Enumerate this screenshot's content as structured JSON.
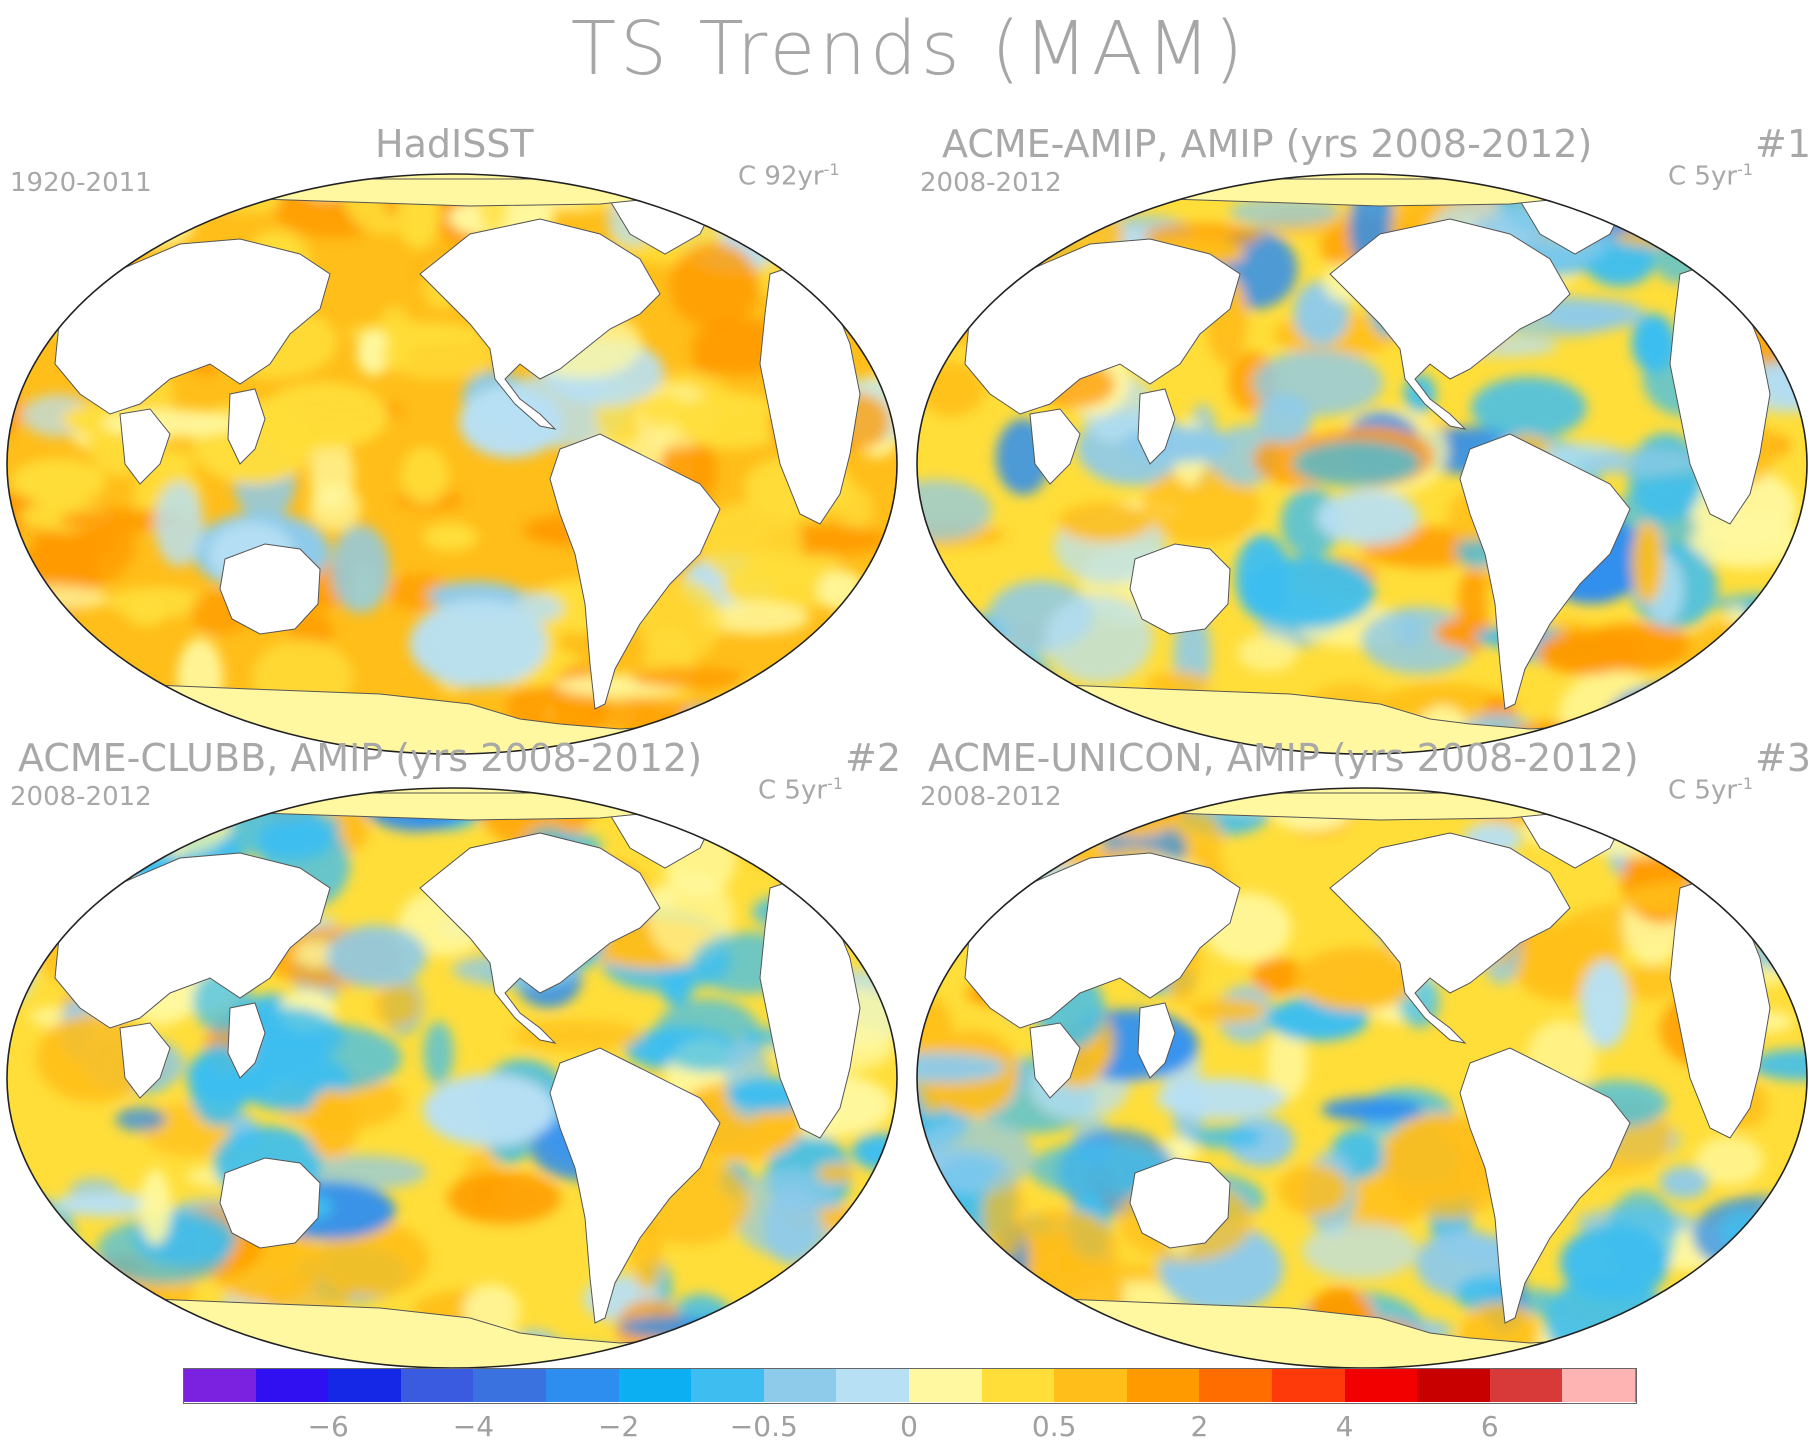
{
  "figure": {
    "title": "TS Trends (MAM)"
  },
  "panels": [
    {
      "title": "HadISST",
      "number": "",
      "period": "1920-2011",
      "units_prefix": "C 92yr",
      "units_exp": "-1"
    },
    {
      "title": "ACME-AMIP, AMIP (yrs 2008-2012)",
      "number": "#1",
      "period": "2008-2012",
      "units_prefix": "C 5yr",
      "units_exp": "-1"
    },
    {
      "title": "ACME-CLUBB, AMIP (yrs 2008-2012)",
      "number": "#2",
      "period": "2008-2012",
      "units_prefix": "C 5yr",
      "units_exp": "-1"
    },
    {
      "title": "ACME-UNICON, AMIP (yrs 2008-2012)",
      "number": "#3",
      "period": "2008-2012",
      "units_prefix": "C 5yr",
      "units_exp": "-1"
    }
  ],
  "colorbar": {
    "colors": [
      "#7b22e0",
      "#3010f0",
      "#1428e6",
      "#3a5ae0",
      "#3a72e0",
      "#2e8ef0",
      "#0cb0f2",
      "#3ebef0",
      "#8ecaea",
      "#b8e0f4",
      "#fff8a0",
      "#ffde3a",
      "#ffbe1a",
      "#ff9a00",
      "#ff6c00",
      "#ff3a0a",
      "#f20000",
      "#c80000",
      "#d83a3a",
      "#ffb4b4"
    ],
    "labels": [
      "-6",
      "-4",
      "-2",
      "-0.5",
      "0",
      "0.5",
      "2",
      "4",
      "6"
    ]
  }
}
